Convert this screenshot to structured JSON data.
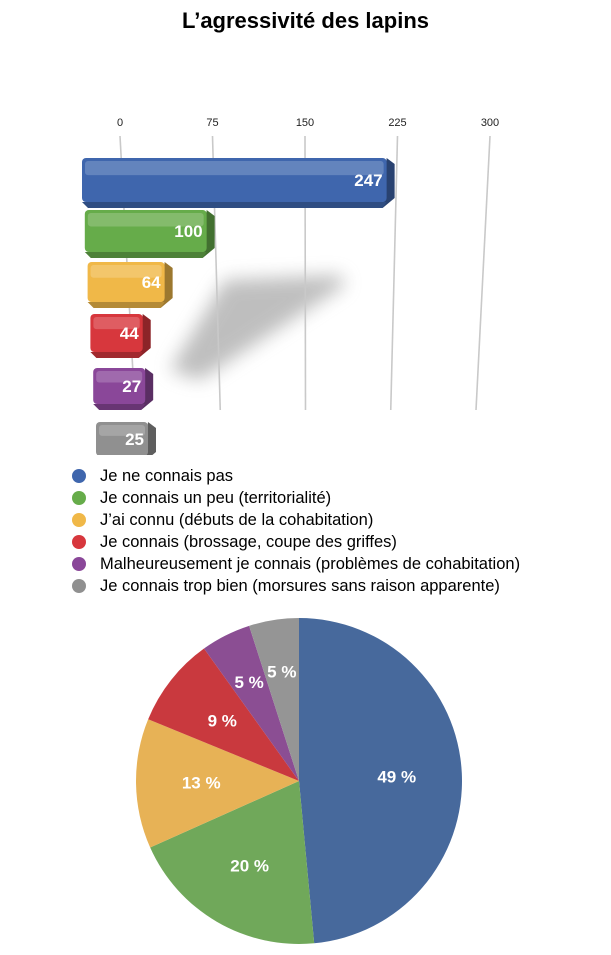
{
  "title": "L’agressivité des lapins",
  "chart_data": [
    {
      "type": "bar",
      "orientation": "horizontal",
      "categories": [
        "Je ne connais pas",
        "Je connais un peu (territorialité)",
        "J’ai connu (débuts de la cohabitation)",
        "Je connais (brossage, coupe des griffes)",
        "Malheureusement je connais (problèmes de cohabitation)",
        "Je connais trop bien (morsures sans raison apparente)"
      ],
      "values": [
        247,
        100,
        64,
        44,
        27,
        25
      ],
      "value_labels": [
        "247",
        "100",
        "64",
        "44",
        "27",
        "25"
      ],
      "xlim": [
        0,
        300
      ],
      "ticks": [
        "0",
        "75",
        "150",
        "225",
        "300"
      ],
      "grid": true,
      "colors": [
        "#3f66ad",
        "#66ac4a",
        "#f0b848",
        "#d7373d",
        "#8a4799",
        "#909090"
      ]
    },
    {
      "type": "pie",
      "categories": [
        "Je ne connais pas",
        "Je connais un peu (territorialité)",
        "J’ai connu (débuts de la cohabitation)",
        "Je connais (brossage, coupe des griffes)",
        "Malheureusement je connais (problèmes de cohabitation)",
        "Je connais trop bien (morsures sans raison apparente)"
      ],
      "values": [
        49,
        20,
        13,
        9,
        5,
        5
      ],
      "labels": [
        "49 %",
        "20 %",
        "13 %",
        "9 %",
        "5 %",
        "5 %"
      ],
      "colors": [
        "#47699c",
        "#70a85a",
        "#e7b256",
        "#c9393e",
        "#8b4e93",
        "#959595"
      ]
    }
  ],
  "legend": {
    "placement": "between charts",
    "items": [
      {
        "label": "Je ne connais pas",
        "color": "#3f66ad"
      },
      {
        "label": "Je connais un peu (territorialité)",
        "color": "#66ac4a"
      },
      {
        "label": "J’ai connu (débuts de la cohabitation)",
        "color": "#f0b848"
      },
      {
        "label": "Je connais (brossage, coupe des griffes)",
        "color": "#d7373d"
      },
      {
        "label": "Malheureusement je connais (problèmes de cohabitation)",
        "color": "#8a4799"
      },
      {
        "label": "Je connais trop bien (morsures sans raison apparente)",
        "color": "#909090"
      }
    ]
  }
}
